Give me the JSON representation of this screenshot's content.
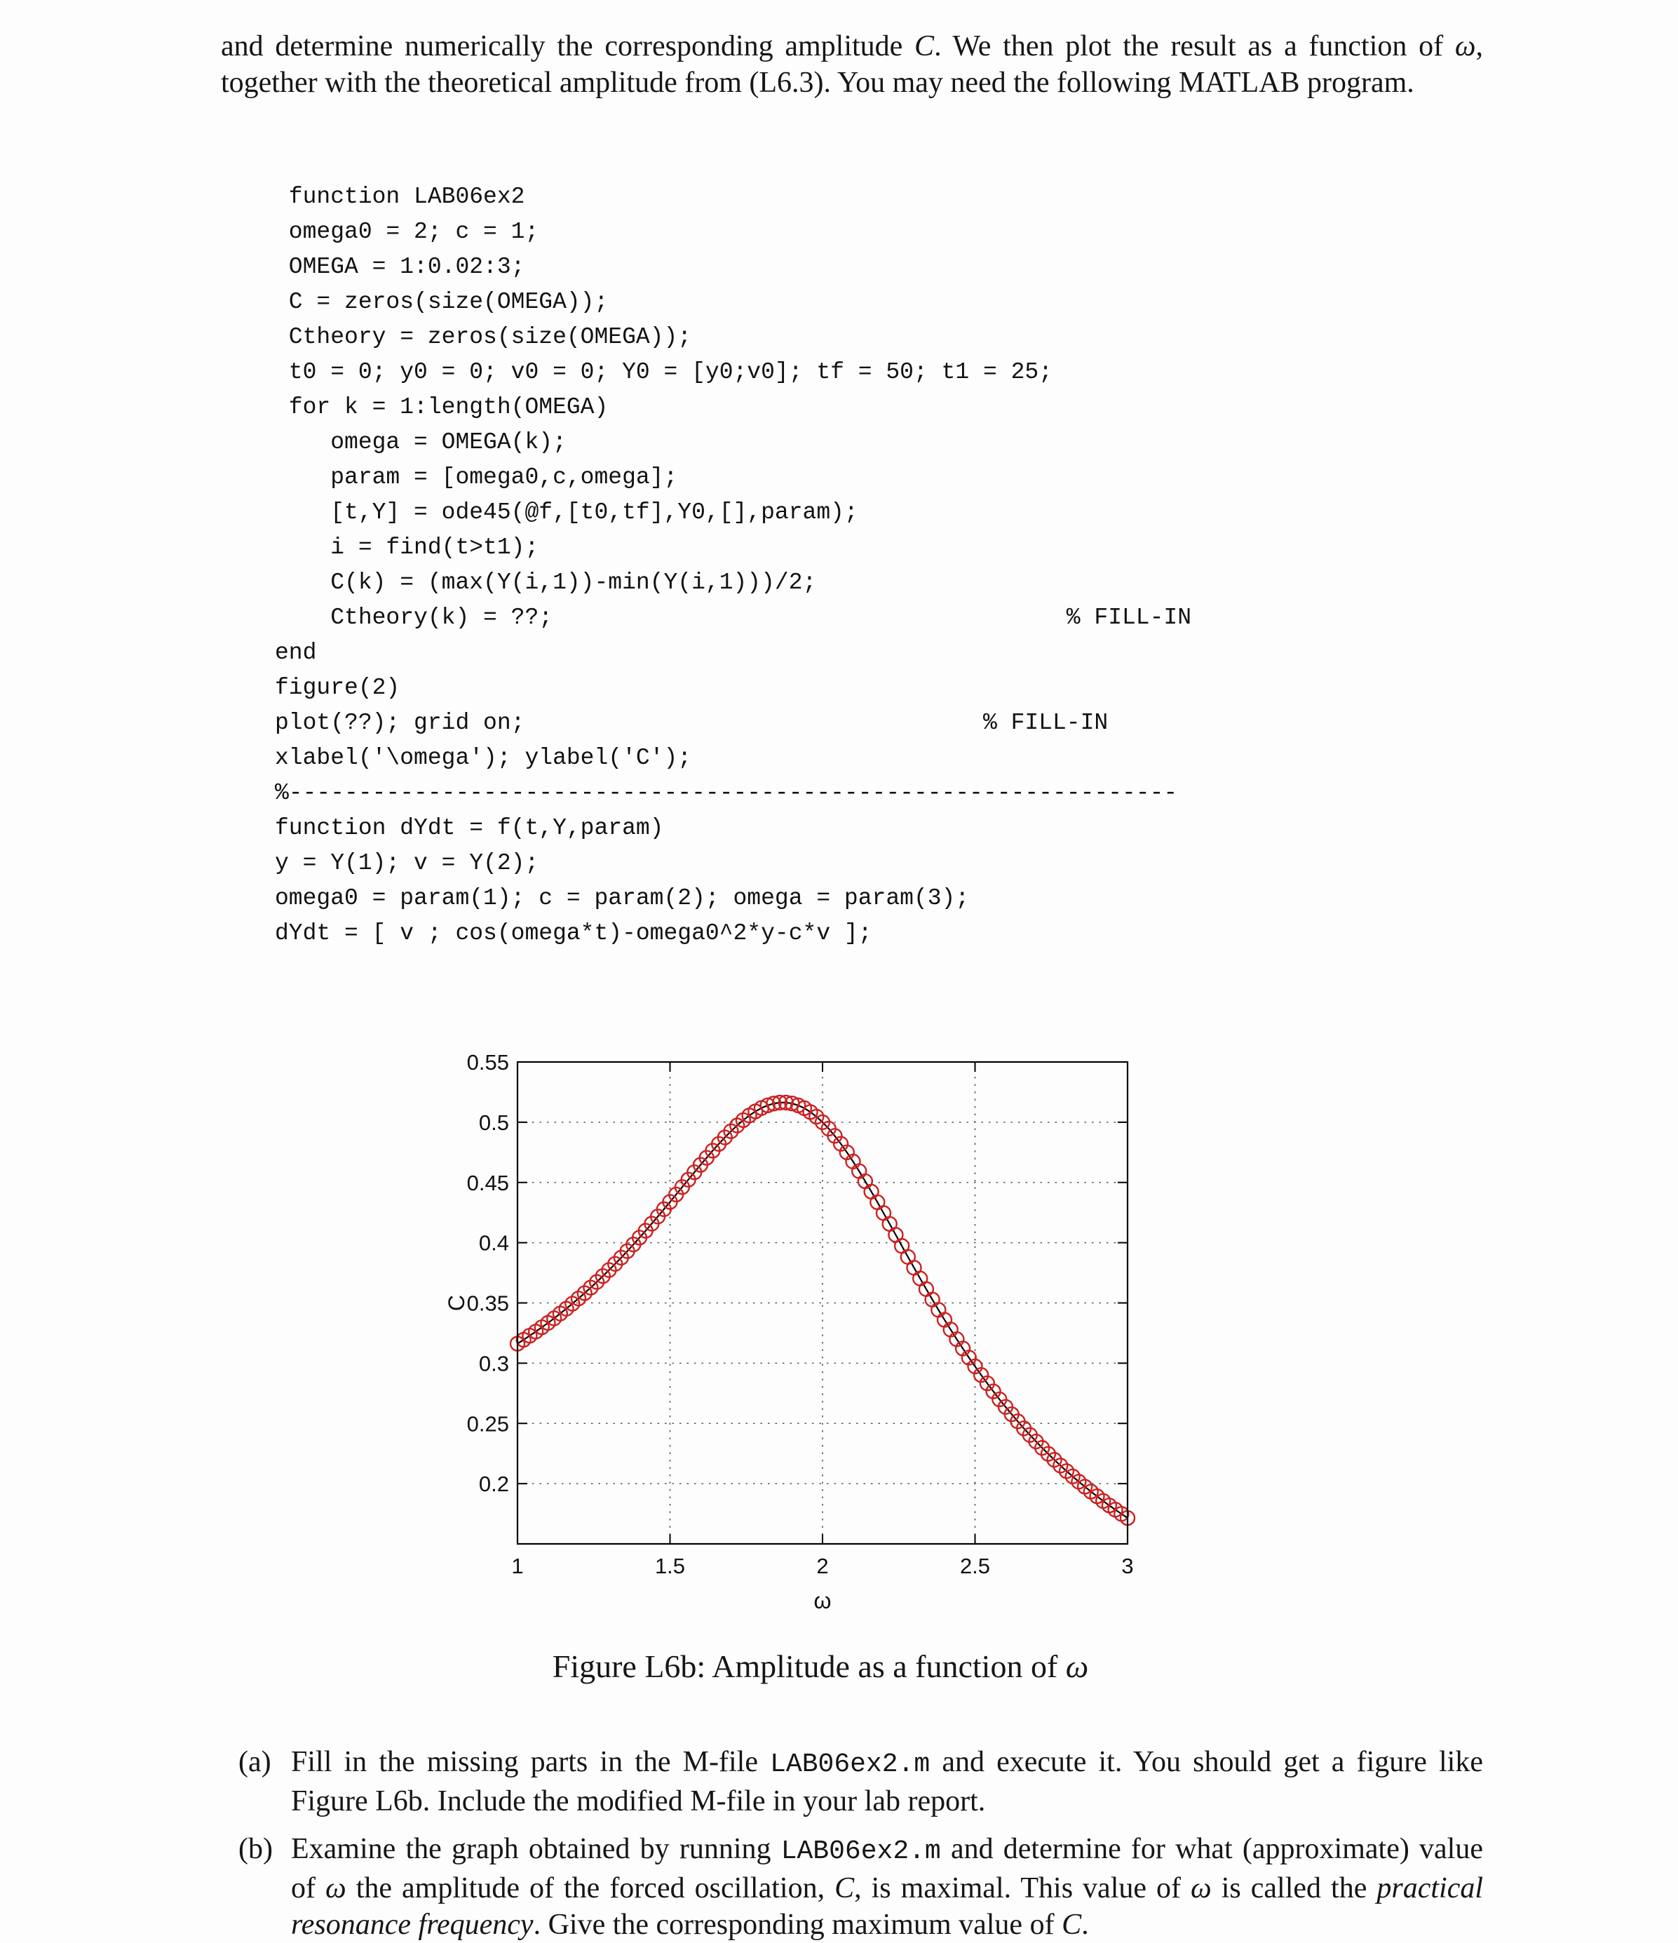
{
  "intro": {
    "segments": [
      {
        "t": "and determine numerically the corresponding amplitude "
      },
      {
        "t": "C",
        "s": "it"
      },
      {
        "t": ". We then plot the result as a function of "
      },
      {
        "t": "ω",
        "s": "it"
      },
      {
        "t": ", together with the theoretical amplitude from (L6.3). You may need the following MATLAB program."
      }
    ]
  },
  "code": {
    "lines": [
      " function LAB06ex2",
      " omega0 = 2; c = 1;",
      " OMEGA = 1:0.02:3;",
      " C = zeros(size(OMEGA));",
      " Ctheory = zeros(size(OMEGA));",
      " t0 = 0; y0 = 0; v0 = 0; Y0 = [y0;v0]; tf = 50; t1 = 25;",
      " for k = 1:length(OMEGA)",
      "    omega = OMEGA(k);",
      "    param = [omega0,c,omega];",
      "    [t,Y] = ode45(@f,[t0,tf],Y0,[],param);",
      "    i = find(t>t1);",
      "    C(k) = (max(Y(i,1))-min(Y(i,1)))/2;",
      "    Ctheory(k) = ??;                                     % FILL-IN",
      "end",
      "figure(2)",
      "plot(??); grid on;                                 % FILL-IN",
      "xlabel('\\omega'); ylabel('C');",
      "%----------------------------------------------------------------",
      "function dYdt = f(t,Y,param)",
      "y = Y(1); v = Y(2);",
      "omega0 = param(1); c = param(2); omega = param(3);",
      "dYdt = [ v ; cos(omega*t)-omega0^2*y-c*v ];"
    ]
  },
  "figure": {
    "caption_segments": [
      {
        "t": "Figure L6b: Amplitude as a function of "
      },
      {
        "t": "ω",
        "s": "it"
      }
    ]
  },
  "chart_data": {
    "type": "line",
    "title": "",
    "xlabel": "ω",
    "ylabel": "C",
    "xlim": [
      1,
      3
    ],
    "ylim": [
      0.15,
      0.55
    ],
    "xticks": [
      1,
      1.5,
      2,
      2.5,
      3
    ],
    "xtick_labels": [
      "1",
      "1.5",
      "2",
      "2.5",
      "3"
    ],
    "yticks": [
      0.2,
      0.25,
      0.3,
      0.35,
      0.4,
      0.45,
      0.5,
      0.55
    ],
    "ytick_labels": [
      "0.2",
      "0.25",
      "0.3",
      "0.35",
      "0.4",
      "0.45",
      "0.5",
      "0.55"
    ],
    "grid": true,
    "legend": false,
    "x_start": 1,
    "x_step": 0.02,
    "series": [
      {
        "name": "C numerical (ode45, red circles)",
        "style": "scatter-circle",
        "color": "#cc2020"
      },
      {
        "name": "Ctheory theoretical (black line)",
        "style": "line-solid",
        "color": "#000000"
      }
    ],
    "values": [
      0.3162,
      0.3194,
      0.3228,
      0.3262,
      0.3298,
      0.3334,
      0.3372,
      0.3412,
      0.3452,
      0.3494,
      0.3537,
      0.3581,
      0.3627,
      0.3674,
      0.3723,
      0.3773,
      0.3824,
      0.3876,
      0.393,
      0.3985,
      0.4042,
      0.4099,
      0.4158,
      0.4217,
      0.4278,
      0.4339,
      0.44,
      0.4462,
      0.4523,
      0.4585,
      0.4646,
      0.4705,
      0.4764,
      0.482,
      0.4874,
      0.4925,
      0.4973,
      0.5017,
      0.5056,
      0.509,
      0.5118,
      0.514,
      0.5155,
      0.5163,
      0.5163,
      0.5156,
      0.514,
      0.5117,
      0.5085,
      0.5046,
      0.5,
      0.4947,
      0.4887,
      0.4821,
      0.475,
      0.4674,
      0.4594,
      0.451,
      0.4424,
      0.4336,
      0.4246,
      0.4156,
      0.4065,
      0.3973,
      0.3882,
      0.3792,
      0.3703,
      0.3615,
      0.3528,
      0.3443,
      0.336,
      0.3279,
      0.3199,
      0.3122,
      0.3046,
      0.2973,
      0.2902,
      0.2833,
      0.2766,
      0.27,
      0.2637,
      0.2576,
      0.2517,
      0.2459,
      0.2404,
      0.235,
      0.2297,
      0.2247,
      0.2198,
      0.215,
      0.2104,
      0.206,
      0.2016,
      0.1975,
      0.1934,
      0.1895,
      0.1856,
      0.1819,
      0.1784,
      0.1749,
      0.1715
    ]
  },
  "items": [
    {
      "label": "(a)",
      "segments": [
        {
          "t": "Fill in the missing parts in the M-file "
        },
        {
          "t": "LAB06ex2.m",
          "s": "mono"
        },
        {
          "t": " and execute it. You should get a figure like Figure L6b. Include the modified M-file in your lab report."
        }
      ]
    },
    {
      "label": "(b)",
      "segments": [
        {
          "t": "Examine the graph obtained by running "
        },
        {
          "t": "LAB06ex2.m",
          "s": "mono"
        },
        {
          "t": " and determine for what (approximate) value of "
        },
        {
          "t": "ω",
          "s": "it"
        },
        {
          "t": " the amplitude of the forced oscillation, "
        },
        {
          "t": "C",
          "s": "it"
        },
        {
          "t": ", is maximal. This value of "
        },
        {
          "t": "ω",
          "s": "it"
        },
        {
          "t": " is called the "
        },
        {
          "t": "practical resonance frequency",
          "s": "it"
        },
        {
          "t": ". Give the corresponding maximum value of "
        },
        {
          "t": "C",
          "s": "it"
        },
        {
          "t": "."
        }
      ]
    }
  ]
}
